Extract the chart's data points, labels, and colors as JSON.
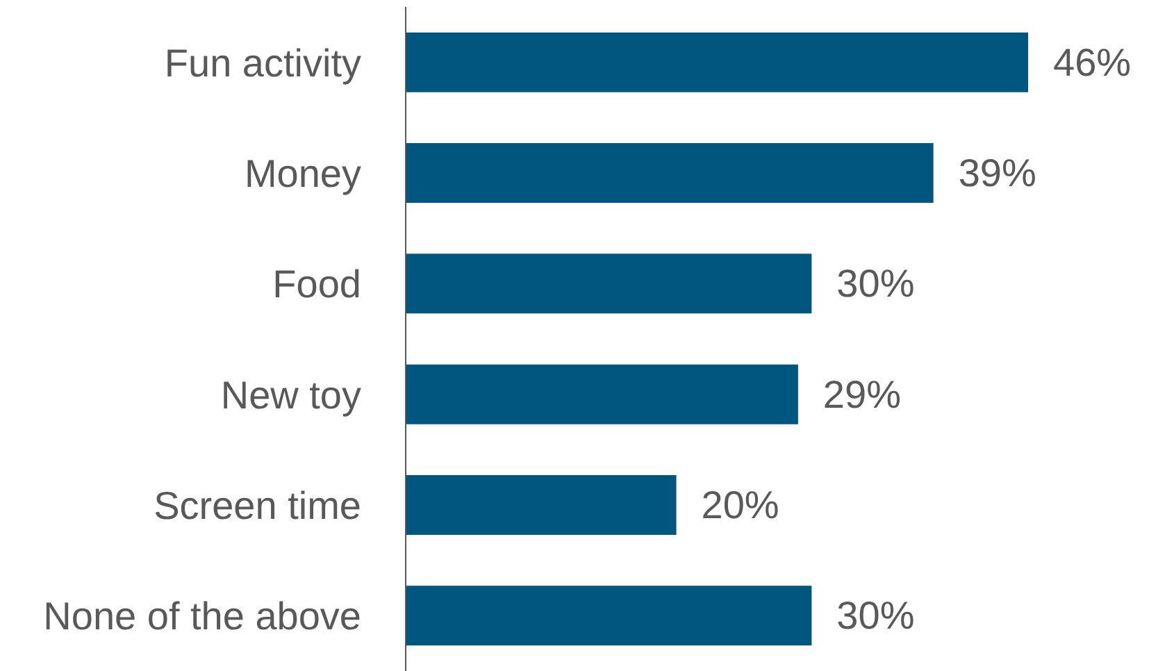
{
  "chart_data": {
    "type": "bar",
    "orientation": "horizontal",
    "categories": [
      "Fun activity",
      "Money",
      "Food",
      "New toy",
      "Screen time",
      "None of the above"
    ],
    "values": [
      46,
      39,
      30,
      29,
      20,
      30
    ],
    "value_labels": [
      "46%",
      "39%",
      "30%",
      "29%",
      "20%",
      "30%"
    ],
    "color": "#00567e",
    "tick_labels": "y",
    "grid": false,
    "legend": false
  }
}
